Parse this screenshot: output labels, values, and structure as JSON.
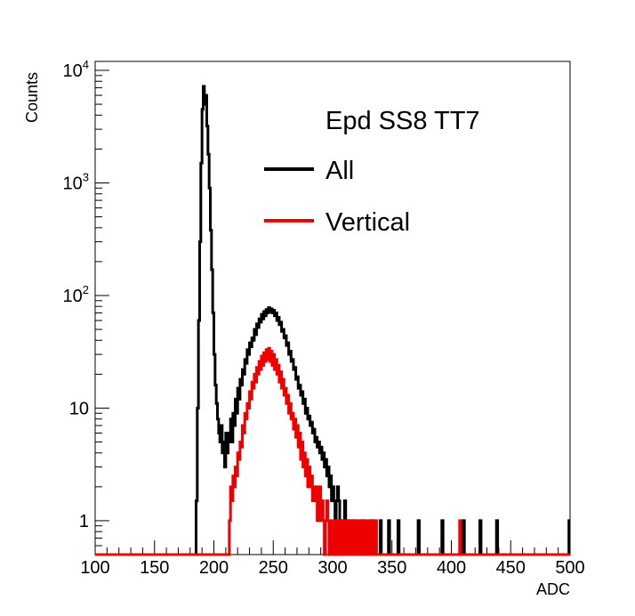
{
  "chart_data": {
    "type": "line",
    "subtype": "step-histogram",
    "title": "",
    "xlabel": "ADC",
    "ylabel": "Counts",
    "xlim": [
      100,
      500
    ],
    "ylim": [
      0.5,
      12000
    ],
    "yscale": "log",
    "grid": false,
    "legend": {
      "title": "Epd SS8 TT7",
      "placement": "top-right",
      "entries": [
        "All",
        "Vertical"
      ]
    },
    "x_ticks": [
      "100",
      "150",
      "200",
      "250",
      "300",
      "350",
      "400",
      "450",
      "500"
    ],
    "x_tick_values": [
      100,
      150,
      200,
      250,
      300,
      350,
      400,
      450,
      500
    ],
    "y_tick_values": [
      1,
      10,
      100,
      1000,
      10000
    ],
    "y_ticks": [
      {
        "base": "1",
        "exp": ""
      },
      {
        "base": "10",
        "exp": ""
      },
      {
        "base": "10",
        "exp": "2"
      },
      {
        "base": "10",
        "exp": "3"
      },
      {
        "base": "10",
        "exp": "4"
      }
    ],
    "floor": 0.5,
    "series": [
      {
        "name": "All",
        "color": "#000000",
        "points": [
          [
            100,
            0.5
          ],
          [
            184,
            0.5
          ],
          [
            185,
            1.5
          ],
          [
            186,
            10
          ],
          [
            187,
            60
          ],
          [
            188,
            300
          ],
          [
            189,
            1500
          ],
          [
            190,
            4500
          ],
          [
            191,
            7200
          ],
          [
            192,
            5000
          ],
          [
            193,
            6000
          ],
          [
            194,
            3200
          ],
          [
            195,
            1800
          ],
          [
            196,
            900
          ],
          [
            197,
            380
          ],
          [
            198,
            170
          ],
          [
            199,
            70
          ],
          [
            200,
            30
          ],
          [
            201,
            16
          ],
          [
            202,
            11
          ],
          [
            203,
            8
          ],
          [
            204,
            6
          ],
          [
            205,
            5
          ],
          [
            206,
            7
          ],
          [
            207,
            4
          ],
          [
            208,
            5
          ],
          [
            209,
            3
          ],
          [
            210,
            6
          ],
          [
            211,
            4
          ],
          [
            212,
            5
          ],
          [
            213,
            6
          ],
          [
            214,
            8
          ],
          [
            215,
            5
          ],
          [
            216,
            9
          ],
          [
            217,
            7
          ],
          [
            218,
            12
          ],
          [
            219,
            9
          ],
          [
            220,
            15
          ],
          [
            221,
            12
          ],
          [
            222,
            18
          ],
          [
            223,
            16
          ],
          [
            224,
            22
          ],
          [
            225,
            20
          ],
          [
            226,
            27
          ],
          [
            227,
            25
          ],
          [
            228,
            33
          ],
          [
            229,
            30
          ],
          [
            230,
            38
          ],
          [
            231,
            35
          ],
          [
            232,
            42
          ],
          [
            233,
            40
          ],
          [
            234,
            50
          ],
          [
            235,
            45
          ],
          [
            236,
            56
          ],
          [
            237,
            52
          ],
          [
            238,
            62
          ],
          [
            239,
            58
          ],
          [
            240,
            68
          ],
          [
            241,
            62
          ],
          [
            242,
            72
          ],
          [
            243,
            66
          ],
          [
            244,
            75
          ],
          [
            245,
            70
          ],
          [
            246,
            78
          ],
          [
            247,
            72
          ],
          [
            248,
            76
          ],
          [
            249,
            70
          ],
          [
            250,
            74
          ],
          [
            251,
            66
          ],
          [
            252,
            70
          ],
          [
            253,
            60
          ],
          [
            254,
            64
          ],
          [
            255,
            55
          ],
          [
            256,
            58
          ],
          [
            257,
            48
          ],
          [
            258,
            50
          ],
          [
            259,
            42
          ],
          [
            260,
            44
          ],
          [
            261,
            36
          ],
          [
            262,
            38
          ],
          [
            263,
            30
          ],
          [
            264,
            32
          ],
          [
            265,
            26
          ],
          [
            266,
            27
          ],
          [
            267,
            22
          ],
          [
            268,
            23
          ],
          [
            269,
            18
          ],
          [
            270,
            19
          ],
          [
            271,
            15
          ],
          [
            272,
            16
          ],
          [
            273,
            13
          ],
          [
            274,
            14
          ],
          [
            275,
            11
          ],
          [
            276,
            12
          ],
          [
            277,
            9
          ],
          [
            278,
            10
          ],
          [
            279,
            8
          ],
          [
            280,
            8.5
          ],
          [
            281,
            7
          ],
          [
            282,
            7.5
          ],
          [
            283,
            6
          ],
          [
            284,
            6.5
          ],
          [
            285,
            5
          ],
          [
            286,
            5.5
          ],
          [
            287,
            4.5
          ],
          [
            288,
            5
          ],
          [
            289,
            4
          ],
          [
            290,
            4.5
          ],
          [
            291,
            3.5
          ],
          [
            292,
            4
          ],
          [
            293,
            3
          ],
          [
            294,
            3.5
          ],
          [
            295,
            2.5
          ],
          [
            296,
            3
          ],
          [
            297,
            2
          ],
          [
            298,
            2.5
          ],
          [
            299,
            1.5
          ],
          [
            300,
            2
          ],
          [
            301,
            1.5
          ],
          [
            302,
            1
          ],
          [
            303,
            1.5
          ],
          [
            304,
            2
          ],
          [
            305,
            1.5
          ],
          [
            306,
            1
          ],
          [
            307,
            0.5
          ],
          [
            309,
            1
          ],
          [
            310,
            1.5
          ],
          [
            311,
            1
          ],
          [
            312,
            0.5
          ],
          [
            314,
            1
          ],
          [
            315,
            0.5
          ],
          [
            318,
            1
          ],
          [
            319,
            0.5
          ],
          [
            325,
            1
          ],
          [
            326,
            0.5
          ],
          [
            333,
            1
          ],
          [
            334,
            0.5
          ],
          [
            340,
            1
          ],
          [
            341,
            0.5
          ],
          [
            347,
            1
          ],
          [
            348,
            0.5
          ],
          [
            355,
            1
          ],
          [
            356,
            0.5
          ],
          [
            372,
            1
          ],
          [
            373,
            0.5
          ],
          [
            392,
            1
          ],
          [
            393,
            0.5
          ],
          [
            410,
            1
          ],
          [
            411,
            0.5
          ],
          [
            424,
            1
          ],
          [
            425,
            0.5
          ],
          [
            438,
            1
          ],
          [
            439,
            0.5
          ],
          [
            499,
            1
          ],
          [
            500,
            1
          ]
        ]
      },
      {
        "name": "Vertical",
        "color": "#ee0000",
        "points": [
          [
            100,
            0.5
          ],
          [
            212,
            0.5
          ],
          [
            213,
            1
          ],
          [
            214,
            2
          ],
          [
            215,
            1.5
          ],
          [
            216,
            2.5
          ],
          [
            217,
            2
          ],
          [
            218,
            3
          ],
          [
            219,
            2.5
          ],
          [
            220,
            4
          ],
          [
            221,
            3.5
          ],
          [
            222,
            5
          ],
          [
            223,
            4.5
          ],
          [
            224,
            7
          ],
          [
            225,
            6
          ],
          [
            226,
            9
          ],
          [
            227,
            8
          ],
          [
            228,
            11
          ],
          [
            229,
            10
          ],
          [
            230,
            14
          ],
          [
            231,
            12
          ],
          [
            232,
            17
          ],
          [
            233,
            15
          ],
          [
            234,
            20
          ],
          [
            235,
            17
          ],
          [
            236,
            23
          ],
          [
            237,
            20
          ],
          [
            238,
            26
          ],
          [
            239,
            22
          ],
          [
            240,
            29
          ],
          [
            241,
            24
          ],
          [
            242,
            31
          ],
          [
            243,
            26
          ],
          [
            244,
            33
          ],
          [
            245,
            27
          ],
          [
            246,
            34
          ],
          [
            247,
            26
          ],
          [
            248,
            32
          ],
          [
            249,
            24
          ],
          [
            250,
            30
          ],
          [
            251,
            22
          ],
          [
            252,
            27
          ],
          [
            253,
            20
          ],
          [
            254,
            24
          ],
          [
            255,
            17
          ],
          [
            256,
            21
          ],
          [
            257,
            15
          ],
          [
            258,
            18
          ],
          [
            259,
            13
          ],
          [
            260,
            15
          ],
          [
            261,
            11
          ],
          [
            262,
            13
          ],
          [
            263,
            9
          ],
          [
            264,
            11
          ],
          [
            265,
            8
          ],
          [
            266,
            9
          ],
          [
            267,
            6.5
          ],
          [
            268,
            8
          ],
          [
            269,
            5.5
          ],
          [
            270,
            7
          ],
          [
            271,
            4.5
          ],
          [
            272,
            6
          ],
          [
            273,
            3.5
          ],
          [
            274,
            5
          ],
          [
            275,
            3
          ],
          [
            276,
            4
          ],
          [
            277,
            2.5
          ],
          [
            278,
            3.5
          ],
          [
            279,
            2
          ],
          [
            280,
            3
          ],
          [
            281,
            2
          ],
          [
            282,
            2.5
          ],
          [
            283,
            1.5
          ],
          [
            284,
            2
          ],
          [
            285,
            1.5
          ],
          [
            286,
            2
          ],
          [
            287,
            1
          ],
          [
            288,
            1.5
          ],
          [
            289,
            2
          ],
          [
            290,
            1
          ],
          [
            291,
            1.5
          ],
          [
            292,
            1
          ],
          [
            293,
            0.5
          ],
          [
            294,
            1
          ],
          [
            295,
            1.5
          ],
          [
            296,
            1
          ],
          [
            297,
            0.5
          ],
          [
            298,
            1
          ],
          [
            299,
            0.5
          ],
          [
            300,
            1
          ],
          [
            301,
            0.5
          ],
          [
            303,
            1
          ],
          [
            304,
            0.5
          ],
          [
            306,
            1
          ],
          [
            307,
            0.5
          ],
          [
            309,
            1
          ],
          [
            310,
            0.5
          ],
          [
            312,
            1
          ],
          [
            313,
            0.5
          ],
          [
            315,
            1
          ],
          [
            316,
            0.5
          ],
          [
            318,
            1
          ],
          [
            319,
            0.5
          ],
          [
            321,
            1
          ],
          [
            322,
            0.5
          ],
          [
            324,
            1
          ],
          [
            325,
            0.5
          ],
          [
            327,
            1
          ],
          [
            328,
            0.5
          ],
          [
            330,
            1
          ],
          [
            331,
            0.5
          ],
          [
            333,
            1
          ],
          [
            334,
            0.5
          ],
          [
            336,
            1
          ],
          [
            337,
            0.5
          ],
          [
            407,
            1
          ],
          [
            408,
            0.5
          ],
          [
            500,
            0.5
          ]
        ]
      }
    ]
  }
}
